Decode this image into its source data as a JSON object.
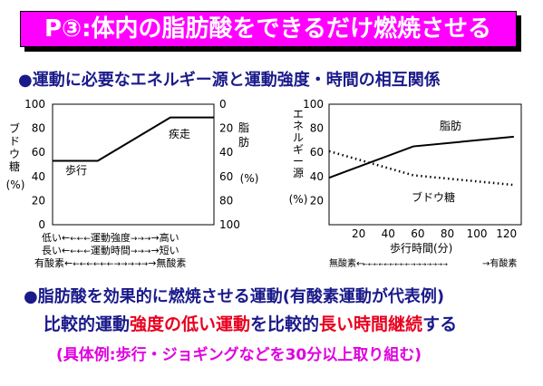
{
  "title": "P③:体内の脂肪酸をできるだけ燃焼させる",
  "section_heading": "●運動に必要なエネルギー源と運動強度・時間の相互関係",
  "colors": {
    "banner": "#ff00ff",
    "heading": "#1a1a8a",
    "emphasis": "#e8001e",
    "example": "#e000e0"
  },
  "chart_data": [
    {
      "type": "line",
      "left_axis": {
        "label": "ブドウ糖(%)",
        "ticks": [
          "100",
          "80",
          "60",
          "40",
          "20",
          "0"
        ]
      },
      "right_axis": {
        "label": "脂肪(%)",
        "ticks": [
          "0",
          "20",
          "40",
          "60",
          "80",
          "100"
        ]
      },
      "series": [
        {
          "name": "歩行",
          "points": [
            [
              0,
              53
            ],
            [
              0.28,
              53
            ],
            [
              0.73,
              89
            ],
            [
              1,
              89
            ]
          ]
        },
        {
          "name": "疾走"
        }
      ],
      "x_scale_lines": [
        {
          "left": "低い←",
          "arrow_left": "←←←",
          "middle": "運動強度",
          "arrow_right": "→→→",
          "right": "→高い"
        },
        {
          "left": "長い←",
          "arrow_left": "←←←",
          "middle": "運動時間",
          "arrow_right": "→→→",
          "right": "→短い"
        },
        {
          "left": "有酸素←",
          "arrow_left": "←←←←←←",
          "middle": "",
          "arrow_right": "→→→→→",
          "right": "→無酸素"
        }
      ]
    },
    {
      "type": "line",
      "y_axis": {
        "label": "エネルギー源(%)",
        "ticks": [
          "100",
          "80",
          "60",
          "40",
          "20"
        ]
      },
      "x_axis": {
        "label": "歩行時間(分)",
        "ticks": [
          "20",
          "40",
          "60",
          "80",
          "100",
          "120"
        ]
      },
      "xlim": [
        0,
        130
      ],
      "ylim": [
        0,
        100
      ],
      "series": [
        {
          "name": "脂肪",
          "style": "solid",
          "x": [
            0,
            57,
            125
          ],
          "y": [
            39,
            65,
            73
          ]
        },
        {
          "name": "ブドウ糖",
          "style": "dotted",
          "x": [
            0,
            57,
            125
          ],
          "y": [
            61,
            41,
            33
          ]
        }
      ],
      "bottom_scale": {
        "left": "無酸素←",
        "arrows": "←←←←←←←←←→→→→→→→",
        "right": "→有酸素"
      }
    }
  ],
  "main_statement": "●脂肪酸を効果的に燃焼させる運動(有酸素運動が代表例)",
  "comparison": {
    "p1": "比較的運動",
    "p2": "強度の低い運動",
    "p3": "を比較的",
    "p4": "長い時間継続",
    "p5": "する"
  },
  "example": "(具体例:歩行・ジョギングなどを30分以上取り組む)"
}
